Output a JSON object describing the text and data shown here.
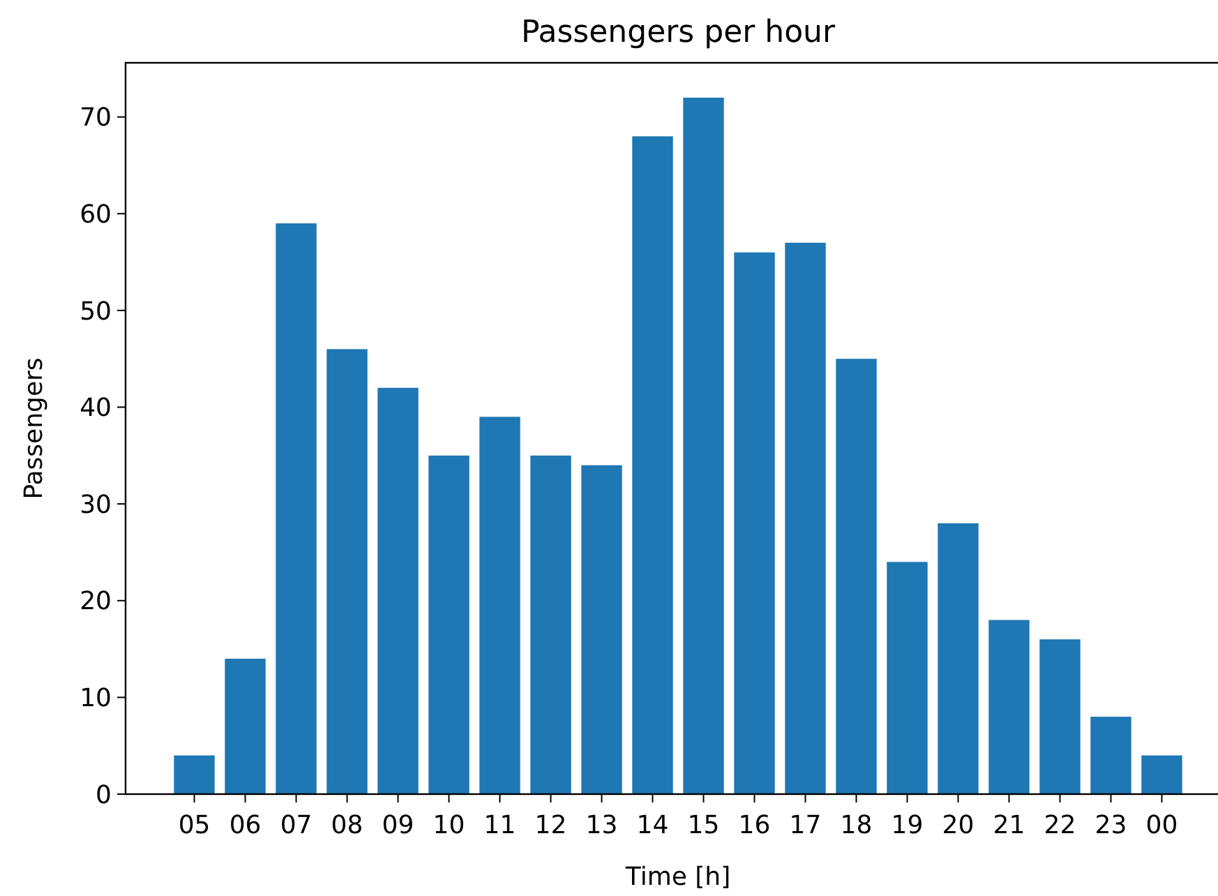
{
  "chart_data": {
    "type": "bar",
    "title": "Passengers per hour",
    "xlabel": "Time [h]",
    "ylabel": "Passengers",
    "categories": [
      "05",
      "06",
      "07",
      "08",
      "09",
      "10",
      "11",
      "12",
      "13",
      "14",
      "15",
      "16",
      "17",
      "18",
      "19",
      "20",
      "21",
      "22",
      "23",
      "00"
    ],
    "values": [
      4,
      14,
      59,
      46,
      42,
      35,
      39,
      35,
      34,
      68,
      72,
      56,
      57,
      45,
      24,
      28,
      18,
      16,
      8,
      4
    ],
    "color": "#1f77b4",
    "ylim": [
      0,
      75.6
    ],
    "yticks": [
      0,
      10,
      20,
      30,
      40,
      50,
      60,
      70
    ],
    "grid": false
  }
}
